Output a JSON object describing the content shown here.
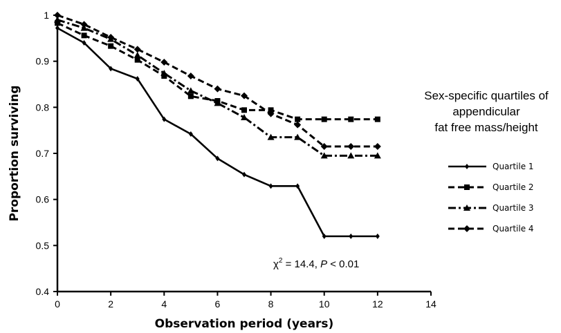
{
  "chart_data": {
    "type": "line",
    "title": "",
    "xlabel": "Observation period (years)",
    "ylabel": "Proportion surviving",
    "xlim": [
      0,
      14
    ],
    "ylim": [
      0.4,
      1
    ],
    "xticks": [
      "0",
      "2",
      "4",
      "6",
      "8",
      "10",
      "12",
      "14"
    ],
    "yticks": [
      "0.4",
      "0.5",
      "0.6",
      "0.7",
      "0.8",
      "0.9",
      "1"
    ],
    "grid": false,
    "legend": {
      "title_lines": [
        "Sex-specific quartiles of",
        "appendicular",
        "fat free mass/height"
      ],
      "placement": "right"
    },
    "annotation": {
      "chi": "χ",
      "sup": "2",
      "eq": " = 14.4, ",
      "p": "P",
      "rest": " < 0.01"
    },
    "x": [
      0,
      1,
      2,
      3,
      4,
      5,
      6,
      7,
      8,
      9,
      10,
      11,
      12
    ],
    "series": [
      {
        "name": "Quartile 1",
        "style": "solid",
        "marker": "diamond",
        "values": [
          0.972,
          0.94,
          0.884,
          0.862,
          0.774,
          0.742,
          0.689,
          0.654,
          0.629,
          0.629,
          0.52,
          0.52,
          0.52
        ]
      },
      {
        "name": "Quartile 2",
        "style": "dashed",
        "marker": "square",
        "values": [
          0.983,
          0.956,
          0.933,
          0.903,
          0.868,
          0.824,
          0.814,
          0.794,
          0.794,
          0.774,
          0.774,
          0.774,
          0.774
        ]
      },
      {
        "name": "Quartile 3",
        "style": "dashdot",
        "marker": "triangle",
        "values": [
          0.99,
          0.972,
          0.948,
          0.913,
          0.874,
          0.836,
          0.809,
          0.778,
          0.735,
          0.735,
          0.695,
          0.695,
          0.695
        ]
      },
      {
        "name": "Quartile 4",
        "style": "dashed",
        "marker": "diamond",
        "values": [
          1.0,
          0.98,
          0.952,
          0.926,
          0.898,
          0.868,
          0.84,
          0.825,
          0.786,
          0.762,
          0.715,
          0.715,
          0.715
        ]
      }
    ]
  }
}
